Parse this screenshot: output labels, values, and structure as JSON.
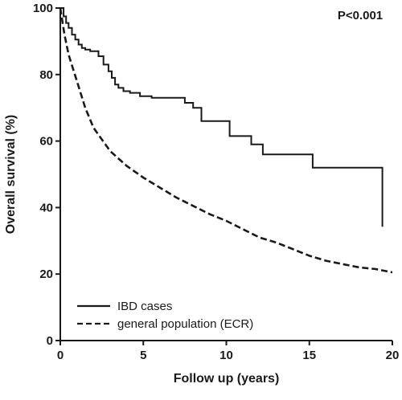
{
  "chart_data": {
    "type": "line",
    "title": "",
    "xlabel": "Follow up (years)",
    "ylabel": "Overall survival (%)",
    "xlim": [
      0,
      20
    ],
    "ylim": [
      0,
      100
    ],
    "x_ticks": [
      "0",
      "5",
      "10",
      "15",
      "20"
    ],
    "y_ticks": [
      "0",
      "20",
      "40",
      "60",
      "80",
      "100"
    ],
    "grid": false,
    "legend_position": "bottom-left",
    "annotation": "P<0.001",
    "series": [
      {
        "name": "IBD cases",
        "style": "solid",
        "step": true,
        "x": [
          0,
          0.2,
          0.35,
          0.5,
          0.7,
          0.9,
          1.1,
          1.3,
          1.5,
          1.8,
          2.3,
          2.6,
          2.9,
          3.1,
          3.3,
          3.5,
          3.8,
          4.2,
          4.8,
          5.5,
          6.5,
          7.5,
          8.0,
          8.5,
          9.5,
          10.2,
          10.5,
          11.5,
          12.2,
          13.0,
          14.0,
          15.2,
          16.5,
          17.5,
          18.5,
          19.4,
          19.45
        ],
        "y": [
          100,
          97.5,
          95.5,
          94,
          92,
          90.5,
          89,
          88,
          87.5,
          87,
          85.5,
          83,
          81,
          79,
          77,
          76,
          75,
          74.5,
          73.5,
          73,
          73,
          71.5,
          70,
          66,
          66,
          61.5,
          61.5,
          59,
          56,
          56,
          56,
          52,
          52,
          52,
          52,
          34.5,
          34.5
        ]
      },
      {
        "name": "general population (ECR)",
        "style": "dashed",
        "step": false,
        "x": [
          0,
          0.25,
          0.5,
          1,
          1.5,
          2,
          3,
          4,
          5,
          6,
          7,
          8,
          9,
          10,
          11,
          12,
          13,
          14,
          15,
          16,
          17,
          18,
          19,
          20
        ],
        "y": [
          100,
          92,
          86,
          78,
          70,
          64,
          57,
          52.5,
          49,
          46,
          43,
          40.5,
          38,
          36,
          33.5,
          31,
          29.5,
          27.5,
          25.5,
          24,
          23,
          22,
          21.5,
          20.5
        ]
      }
    ]
  }
}
